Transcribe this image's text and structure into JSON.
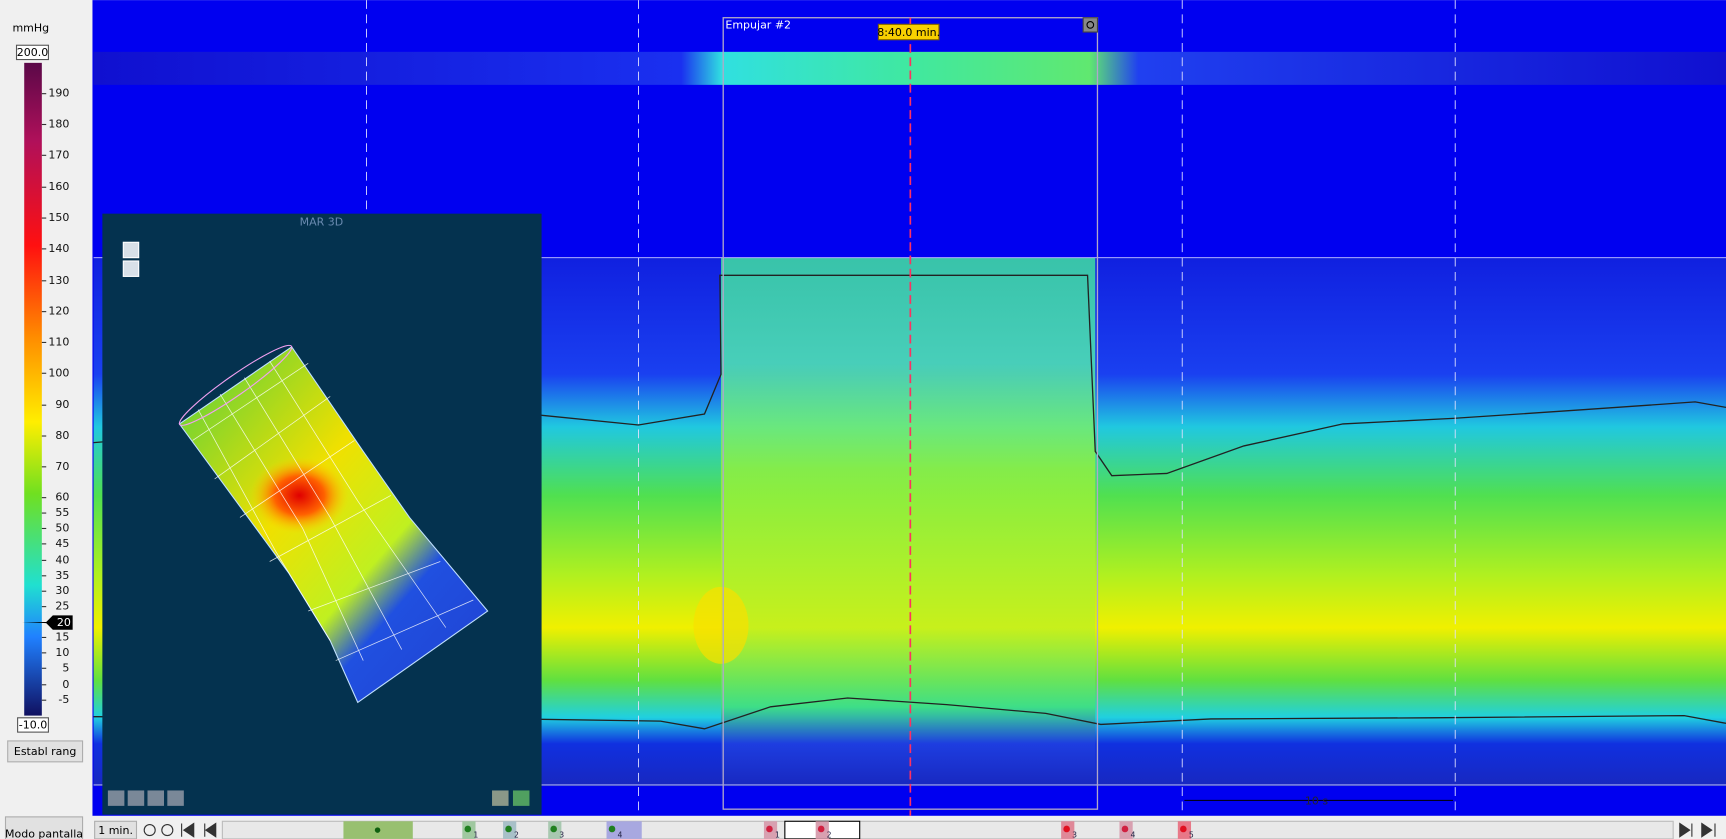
{
  "colorbar": {
    "unit": "mmHg",
    "max": "200.0",
    "min": "-10.0",
    "ticks": [
      "190",
      "180",
      "170",
      "160",
      "150",
      "140",
      "130",
      "120",
      "110",
      "100",
      "90",
      "80",
      "70",
      "60",
      "55",
      "50",
      "45",
      "40",
      "35",
      "30",
      "25",
      "15",
      "10",
      "5",
      "0",
      "-5"
    ],
    "marker": "20",
    "button": "Establ rang"
  },
  "mode_button": "Modo pantalla",
  "plot": {
    "event_label": "Empujar #2",
    "time_label": "8:40.0 min.",
    "scale_label": "10 s"
  },
  "panel": {
    "title": "MAR 3D"
  },
  "toolbar": {
    "zoom": "1 min.",
    "markers": [
      "1",
      "2",
      "3",
      "4",
      "1",
      "2",
      "3",
      "4",
      "5"
    ]
  }
}
